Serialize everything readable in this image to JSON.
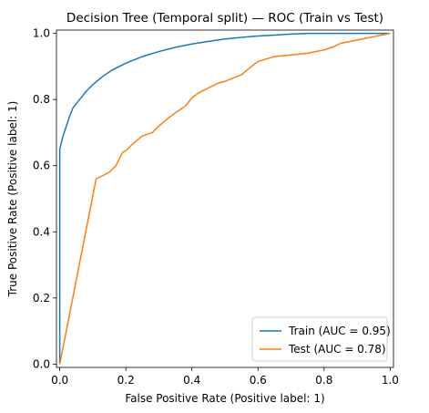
{
  "chart_data": {
    "type": "line",
    "title": "Decision Tree (Temporal split) — ROC (Train vs Test)",
    "xlabel": "False Positive Rate (Positive label: 1)",
    "ylabel": "True Positive Rate (Positive label: 1)",
    "xlim": [
      -0.01,
      1.01
    ],
    "ylim": [
      -0.01,
      1.01
    ],
    "xticks": [
      0.0,
      0.2,
      0.4,
      0.6,
      0.8,
      1.0
    ],
    "yticks": [
      0.0,
      0.2,
      0.4,
      0.6,
      0.8,
      1.0
    ],
    "xtick_labels": [
      "0.0",
      "0.2",
      "0.4",
      "0.6",
      "0.8",
      "1.0"
    ],
    "ytick_labels": [
      "0.0",
      "0.2",
      "0.4",
      "0.6",
      "0.8",
      "1.0"
    ],
    "grid": false,
    "legend_position": "lower-right",
    "series": [
      {
        "name": "Train (AUC = 0.95)",
        "color": "#1f77b4",
        "x": [
          0.0,
          0.0,
          0.005,
          0.01,
          0.02,
          0.03,
          0.04,
          0.06,
          0.08,
          0.1,
          0.13,
          0.16,
          0.2,
          0.25,
          0.3,
          0.35,
          0.4,
          0.45,
          0.5,
          0.55,
          0.6,
          0.65,
          0.7,
          0.75,
          0.8,
          0.9,
          1.0
        ],
        "y": [
          0.0,
          0.65,
          0.67,
          0.69,
          0.72,
          0.75,
          0.775,
          0.8,
          0.825,
          0.845,
          0.87,
          0.89,
          0.91,
          0.93,
          0.945,
          0.958,
          0.968,
          0.976,
          0.983,
          0.988,
          0.992,
          0.995,
          0.998,
          1.0,
          1.0,
          1.0,
          1.0
        ]
      },
      {
        "name": "Test (AUC = 0.78)",
        "color": "#ff7f0e",
        "x": [
          0.0,
          0.11,
          0.13,
          0.15,
          0.17,
          0.19,
          0.2,
          0.22,
          0.25,
          0.28,
          0.3,
          0.33,
          0.35,
          0.38,
          0.4,
          0.42,
          0.45,
          0.48,
          0.5,
          0.55,
          0.58,
          0.6,
          0.65,
          0.7,
          0.75,
          0.8,
          0.83,
          0.85,
          0.9,
          0.95,
          1.0
        ],
        "y": [
          0.0,
          0.56,
          0.57,
          0.58,
          0.6,
          0.64,
          0.645,
          0.665,
          0.69,
          0.7,
          0.72,
          0.745,
          0.76,
          0.78,
          0.805,
          0.82,
          0.835,
          0.85,
          0.855,
          0.875,
          0.9,
          0.915,
          0.93,
          0.935,
          0.94,
          0.95,
          0.96,
          0.97,
          0.98,
          0.99,
          1.0
        ]
      }
    ]
  }
}
